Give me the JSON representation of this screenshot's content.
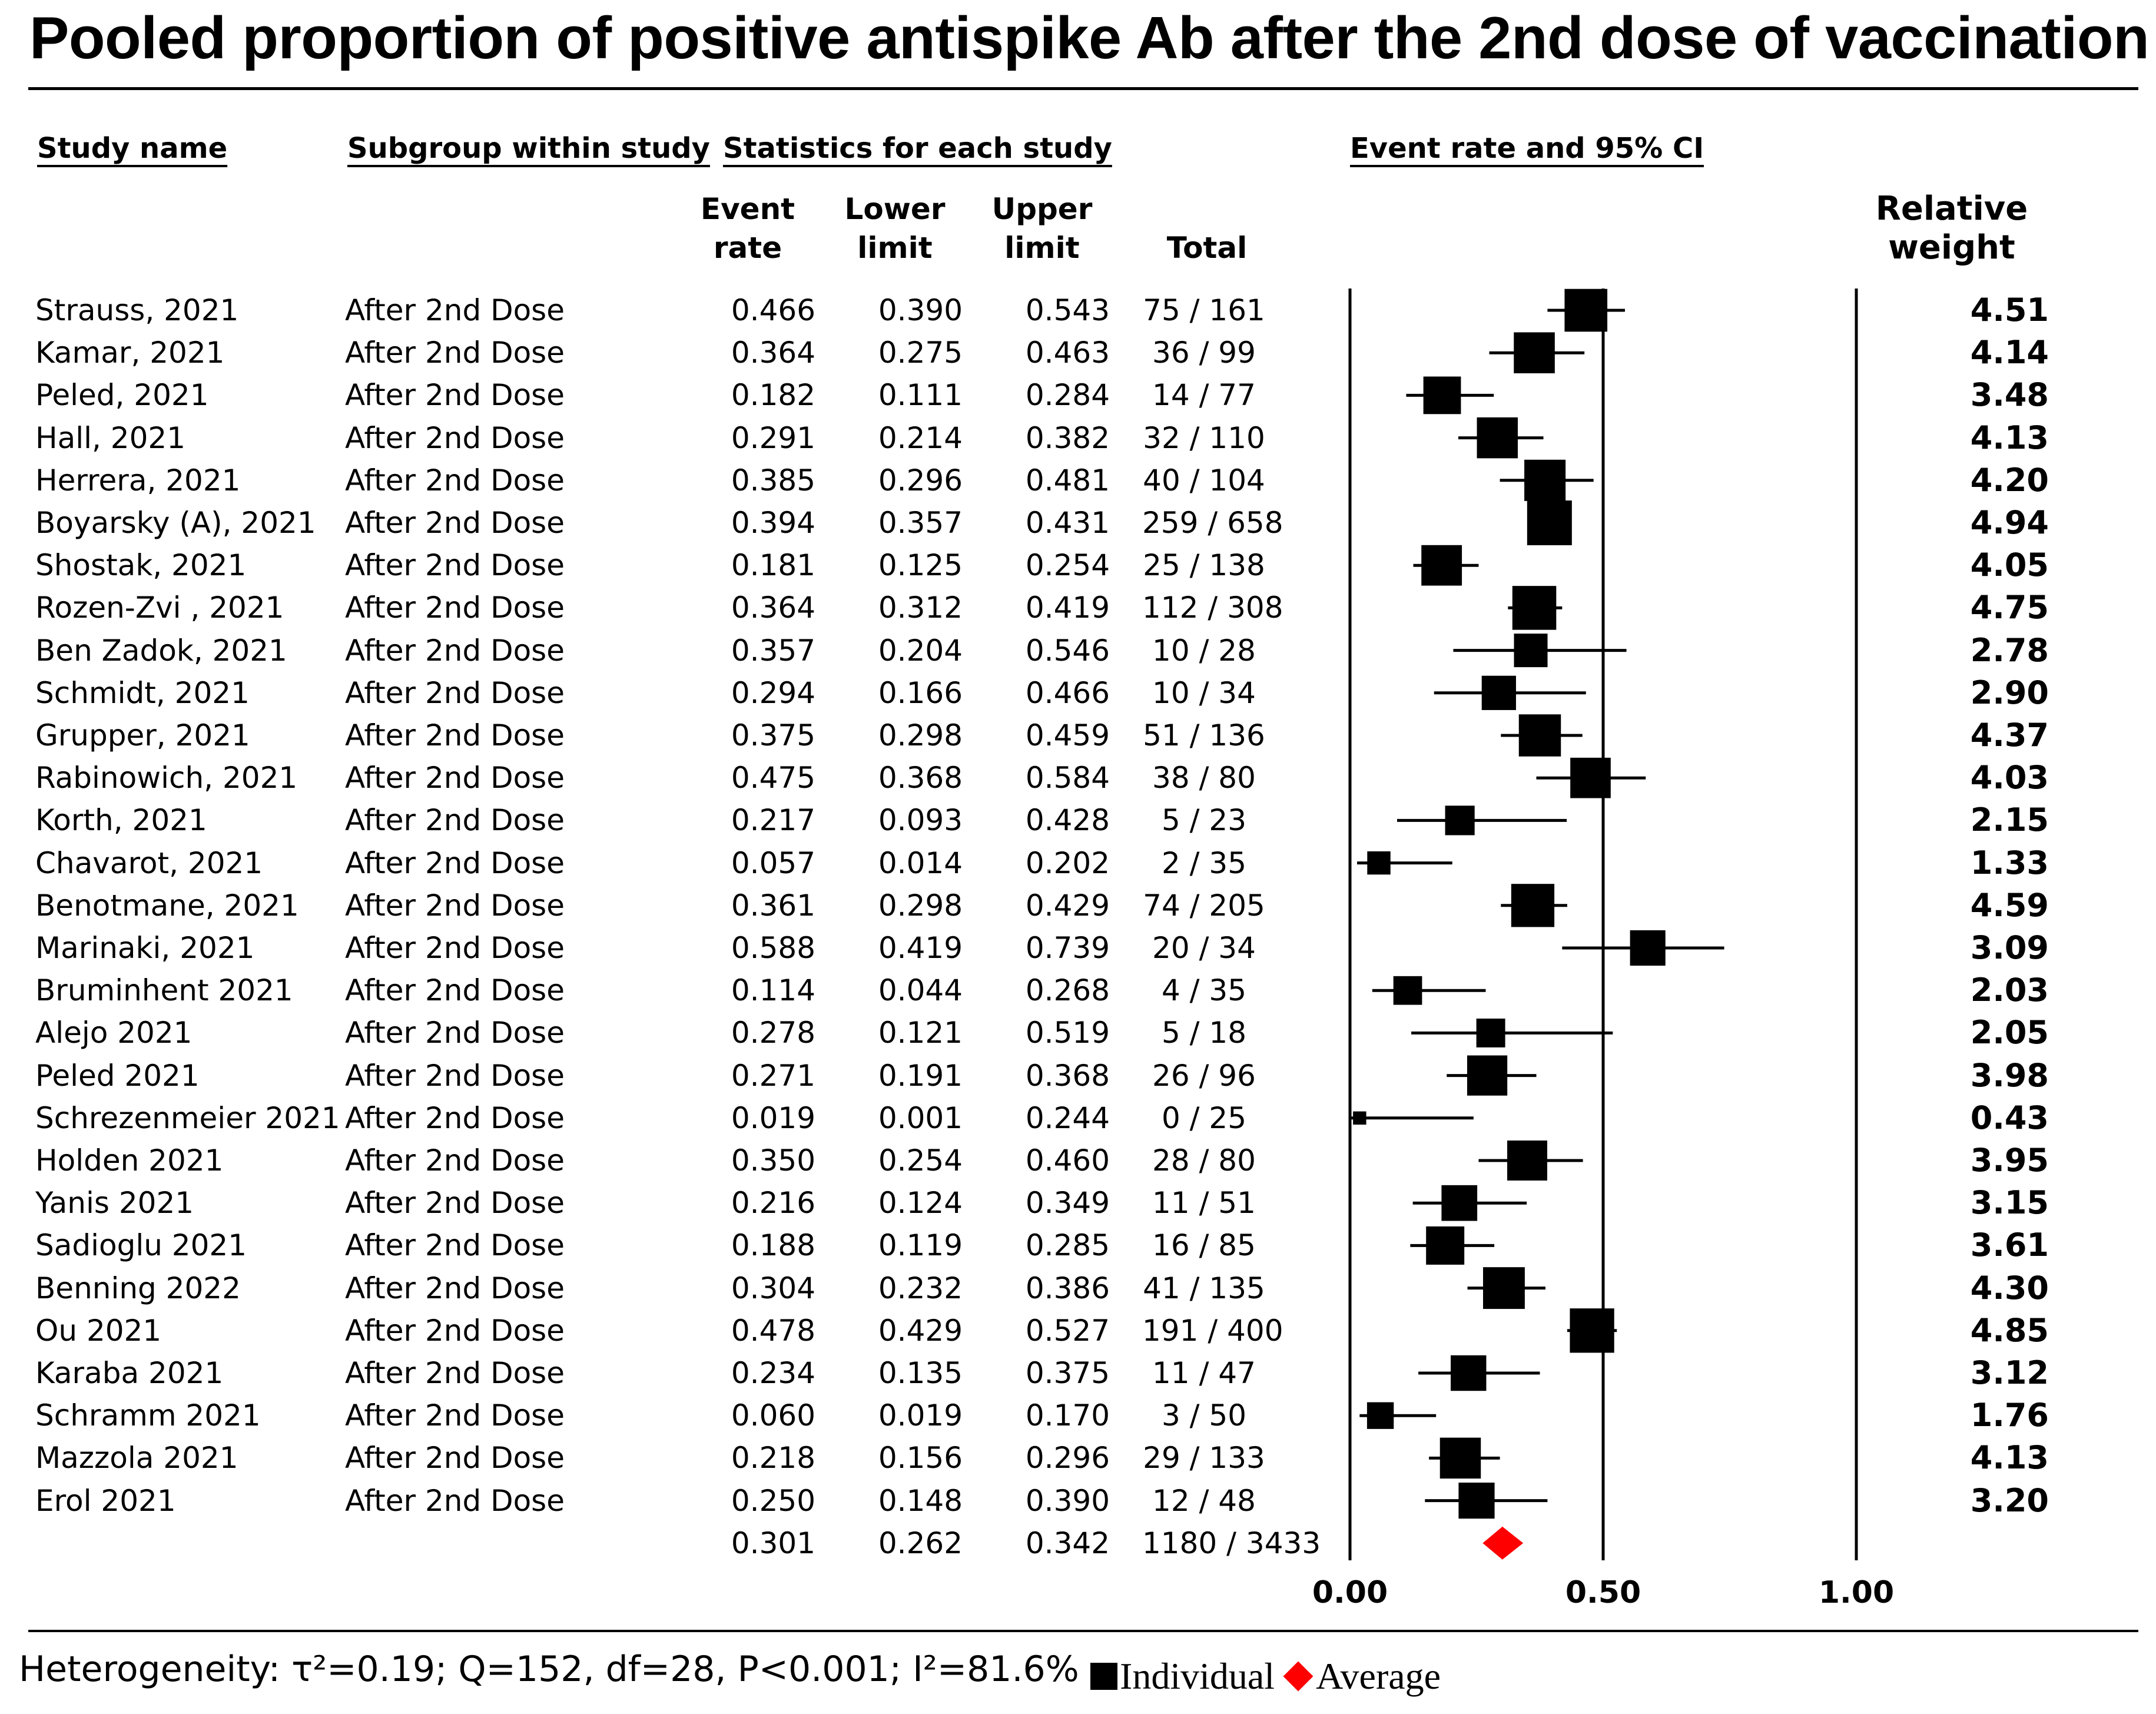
{
  "title": "Pooled proportion of positive antispike Ab after the 2nd dose of vaccination",
  "headers": {
    "study_name": "Study name",
    "subgroup": "Subgroup within study",
    "statistics": "Statistics for each study",
    "event_rate_ci": "Event rate and 95% CI",
    "col_event_rate": [
      "Event",
      "rate"
    ],
    "col_lower": [
      "Lower",
      "limit"
    ],
    "col_upper": [
      "Upper",
      "limit"
    ],
    "col_total": "Total",
    "col_weight": [
      "Relative",
      "weight"
    ]
  },
  "footer": {
    "heterogeneity": "Heterogeneity: τ²=0.19; Q=152, df=28, P<0.001; I²=81.6%",
    "legend_individual": "Individual",
    "legend_average": "Average"
  },
  "colors": {
    "marker": "#000000",
    "summary": "#ff0000",
    "line": "#000000"
  },
  "chart_data": {
    "type": "forest",
    "title": "Pooled proportion of positive antispike Ab after the 2nd dose of vaccination",
    "xlabel": "Event rate and 95% CI",
    "x_ticks": [
      "0.00",
      "0.50",
      "1.00"
    ],
    "xlim": [
      0,
      1
    ],
    "reference_lines": [
      0,
      0.5,
      1
    ],
    "studies": [
      {
        "study": "Strauss, 2021",
        "subgroup": "After 2nd Dose",
        "rate": "0.466",
        "lower": "0.390",
        "upper": "0.543",
        "total": "75 / 161",
        "weight": "4.51"
      },
      {
        "study": "Kamar, 2021",
        "subgroup": "After 2nd Dose",
        "rate": "0.364",
        "lower": "0.275",
        "upper": "0.463",
        "total": "36 / 99",
        "weight": "4.14"
      },
      {
        "study": "Peled, 2021",
        "subgroup": "After 2nd Dose",
        "rate": "0.182",
        "lower": "0.111",
        "upper": "0.284",
        "total": "14 / 77",
        "weight": "3.48"
      },
      {
        "study": "Hall, 2021",
        "subgroup": "After 2nd Dose",
        "rate": "0.291",
        "lower": "0.214",
        "upper": "0.382",
        "total": "32 / 110",
        "weight": "4.13"
      },
      {
        "study": "Herrera, 2021",
        "subgroup": "After 2nd Dose",
        "rate": "0.385",
        "lower": "0.296",
        "upper": "0.481",
        "total": "40 / 104",
        "weight": "4.20"
      },
      {
        "study": "Boyarsky (A), 2021",
        "subgroup": "After 2nd Dose",
        "rate": "0.394",
        "lower": "0.357",
        "upper": "0.431",
        "total": "259 / 658",
        "weight": "4.94"
      },
      {
        "study": "Shostak, 2021",
        "subgroup": "After 2nd Dose",
        "rate": "0.181",
        "lower": "0.125",
        "upper": "0.254",
        "total": "25 / 138",
        "weight": "4.05"
      },
      {
        "study": "Rozen-Zvi , 2021",
        "subgroup": "After 2nd Dose",
        "rate": "0.364",
        "lower": "0.312",
        "upper": "0.419",
        "total": "112 / 308",
        "weight": "4.75"
      },
      {
        "study": "Ben Zadok, 2021",
        "subgroup": "After 2nd Dose",
        "rate": "0.357",
        "lower": "0.204",
        "upper": "0.546",
        "total": "10 / 28",
        "weight": "2.78"
      },
      {
        "study": "Schmidt, 2021",
        "subgroup": "After 2nd Dose",
        "rate": "0.294",
        "lower": "0.166",
        "upper": "0.466",
        "total": "10 / 34",
        "weight": "2.90"
      },
      {
        "study": "Grupper, 2021",
        "subgroup": "After 2nd Dose",
        "rate": "0.375",
        "lower": "0.298",
        "upper": "0.459",
        "total": "51 / 136",
        "weight": "4.37"
      },
      {
        "study": "Rabinowich, 2021",
        "subgroup": "After 2nd Dose",
        "rate": "0.475",
        "lower": "0.368",
        "upper": "0.584",
        "total": "38 / 80",
        "weight": "4.03"
      },
      {
        "study": "Korth, 2021",
        "subgroup": "After 2nd Dose",
        "rate": "0.217",
        "lower": "0.093",
        "upper": "0.428",
        "total": "5 / 23",
        "weight": "2.15"
      },
      {
        "study": "Chavarot, 2021",
        "subgroup": "After 2nd Dose",
        "rate": "0.057",
        "lower": "0.014",
        "upper": "0.202",
        "total": "2 / 35",
        "weight": "1.33"
      },
      {
        "study": "Benotmane, 2021",
        "subgroup": "After 2nd Dose",
        "rate": "0.361",
        "lower": "0.298",
        "upper": "0.429",
        "total": "74 / 205",
        "weight": "4.59"
      },
      {
        "study": "Marinaki, 2021",
        "subgroup": "After 2nd Dose",
        "rate": "0.588",
        "lower": "0.419",
        "upper": "0.739",
        "total": "20 / 34",
        "weight": "3.09"
      },
      {
        "study": "Bruminhent 2021",
        "subgroup": "After 2nd Dose",
        "rate": "0.114",
        "lower": "0.044",
        "upper": "0.268",
        "total": "4 / 35",
        "weight": "2.03"
      },
      {
        "study": "Alejo 2021",
        "subgroup": "After 2nd Dose",
        "rate": "0.278",
        "lower": "0.121",
        "upper": "0.519",
        "total": "5 / 18",
        "weight": "2.05"
      },
      {
        "study": "Peled 2021",
        "subgroup": "After 2nd Dose",
        "rate": "0.271",
        "lower": "0.191",
        "upper": "0.368",
        "total": "26 / 96",
        "weight": "3.98"
      },
      {
        "study": "Schrezenmeier 2021",
        "subgroup": "After 2nd Dose",
        "rate": "0.019",
        "lower": "0.001",
        "upper": "0.244",
        "total": "0 / 25",
        "weight": "0.43"
      },
      {
        "study": "Holden 2021",
        "subgroup": "After 2nd Dose",
        "rate": "0.350",
        "lower": "0.254",
        "upper": "0.460",
        "total": "28 / 80",
        "weight": "3.95"
      },
      {
        "study": "Yanis 2021",
        "subgroup": "After 2nd Dose",
        "rate": "0.216",
        "lower": "0.124",
        "upper": "0.349",
        "total": "11 / 51",
        "weight": "3.15"
      },
      {
        "study": "Sadioglu 2021",
        "subgroup": "After 2nd Dose",
        "rate": "0.188",
        "lower": "0.119",
        "upper": "0.285",
        "total": "16 / 85",
        "weight": "3.61"
      },
      {
        "study": "Benning 2022",
        "subgroup": "After 2nd Dose",
        "rate": "0.304",
        "lower": "0.232",
        "upper": "0.386",
        "total": "41 / 135",
        "weight": "4.30"
      },
      {
        "study": "Ou 2021",
        "subgroup": "After 2nd Dose",
        "rate": "0.478",
        "lower": "0.429",
        "upper": "0.527",
        "total": "191 / 400",
        "weight": "4.85"
      },
      {
        "study": "Karaba 2021",
        "subgroup": "After 2nd Dose",
        "rate": "0.234",
        "lower": "0.135",
        "upper": "0.375",
        "total": "11 / 47",
        "weight": "3.12"
      },
      {
        "study": "Schramm 2021",
        "subgroup": "After 2nd Dose",
        "rate": "0.060",
        "lower": "0.019",
        "upper": "0.170",
        "total": "3 / 50",
        "weight": "1.76"
      },
      {
        "study": "Mazzola 2021",
        "subgroup": "After 2nd Dose",
        "rate": "0.218",
        "lower": "0.156",
        "upper": "0.296",
        "total": "29 / 133",
        "weight": "4.13"
      },
      {
        "study": "Erol 2021",
        "subgroup": "After 2nd Dose",
        "rate": "0.250",
        "lower": "0.148",
        "upper": "0.390",
        "total": "12 / 48",
        "weight": "3.20"
      }
    ],
    "pooled": {
      "rate": "0.301",
      "lower": "0.262",
      "upper": "0.342",
      "total": "1180 / 3433"
    }
  }
}
